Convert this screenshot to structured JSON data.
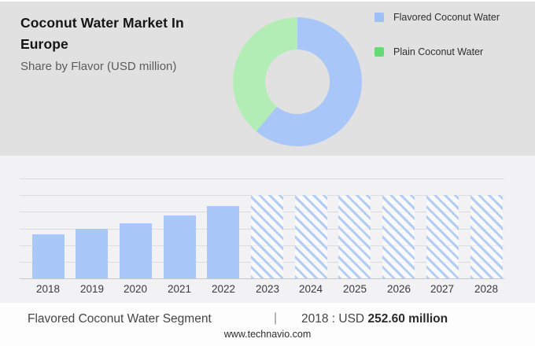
{
  "header": {
    "title": "Coconut Water Market In Europe",
    "subtitle": "Share by Flavor (USD million)"
  },
  "legend": {
    "items": [
      {
        "label": "Flavored Coconut Water",
        "color": "#9dc1f6",
        "icon": "blue-square-swatch"
      },
      {
        "label": "Plain Coconut Water",
        "color": "#65da78",
        "icon": "green-square-swatch"
      }
    ]
  },
  "chart_data": [
    {
      "type": "pie",
      "title": "Share by Flavor (USD million)",
      "labels": [
        "Flavored Coconut Water",
        "Plain Coconut Water"
      ],
      "values": [
        61,
        39
      ],
      "units": "percent share (estimated from arc angles; no numeric labels shown)",
      "colors": [
        "#a8c6f8",
        "#b3edb6"
      ],
      "donut": true,
      "donut_hole_ratio": 0.5,
      "start_angle_deg": 0,
      "legend_position": "right"
    },
    {
      "type": "bar",
      "title": "Flavored Coconut Water Segment (USD million)",
      "categories": [
        "2018",
        "2019",
        "2020",
        "2021",
        "2022",
        "2023",
        "2024",
        "2025",
        "2026",
        "2027",
        "2028"
      ],
      "series": [
        {
          "name": "Flavored Coconut Water",
          "values": [
            252.6,
            281,
            316,
            361,
            412,
            null,
            null,
            null,
            null,
            null,
            null
          ]
        }
      ],
      "known_value": {
        "year": "2018",
        "value": 252.6,
        "label": "2018 : USD 252.60 million"
      },
      "values_note": "2018 value labeled in caption; 2019-2022 estimated from bar heights; 2023-2028 are forecast placeholders drawn as equal-height hatched columns with no numeric values",
      "forecast_categories": [
        "2023",
        "2024",
        "2025",
        "2026",
        "2027",
        "2028"
      ],
      "xlabel": "",
      "ylabel": "",
      "ylim": [
        0,
        570
      ],
      "grid": "horizontal",
      "gridline_count": 6,
      "bar_color": "#a9c7f8",
      "forecast_hatch_color": "#b3cdf5"
    }
  ],
  "caption": {
    "segment_label": "Flavored Coconut Water Segment",
    "separator": "|",
    "prefix": "2018 : USD",
    "value": "252.60 million"
  },
  "footer": {
    "website": "www.technavio.com"
  },
  "colors": {
    "top_panel_bg": "#e1e1e2",
    "chart_panel_bg": "#f2f2f4",
    "footer_bg": "#fdfdfe"
  }
}
